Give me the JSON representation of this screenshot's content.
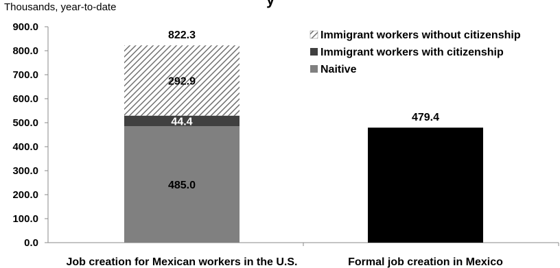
{
  "chart_data": {
    "type": "bar",
    "stacked": true,
    "unit_label": "Thousands, year-to-date",
    "partial_title_fragment": "y",
    "categories": [
      "Job creation for Mexican workers in the U.S.",
      "Formal job creation in Mexico"
    ],
    "series": [
      {
        "name": "Naitive",
        "values": [
          485.0,
          null
        ],
        "color": "#808080",
        "pattern": "solid"
      },
      {
        "name": "Immigrant workers with citizenship",
        "values": [
          44.4,
          null
        ],
        "color": "#404040",
        "pattern": "solid"
      },
      {
        "name": "Immigrant workers without citizenship",
        "values": [
          292.9,
          null
        ],
        "color": "#ffffff",
        "pattern": "hatch"
      },
      {
        "name": "",
        "values": [
          null,
          479.4
        ],
        "color": "#000000",
        "pattern": "solid"
      }
    ],
    "segment_labels": [
      {
        "category": 0,
        "series": 0,
        "text": "485.0",
        "color": "#000000"
      },
      {
        "category": 0,
        "series": 1,
        "text": "44.4",
        "color": "#ffffff"
      },
      {
        "category": 0,
        "series": 2,
        "text": "292.9",
        "color": "#000000"
      }
    ],
    "totals": [
      "822.3",
      "479.4"
    ],
    "yticks": [
      "0.0",
      "100.0",
      "200.0",
      "300.0",
      "400.0",
      "500.0",
      "600.0",
      "700.0",
      "800.0",
      "900.0"
    ],
    "ylim": [
      0,
      900
    ],
    "grid": false,
    "legend_placement": "top-right",
    "legend": [
      {
        "label": "Immigrant workers without citizenship",
        "series": 2
      },
      {
        "label": "Immigrant workers with citizenship",
        "series": 1
      },
      {
        "label": "Naitive",
        "series": 0
      }
    ]
  }
}
